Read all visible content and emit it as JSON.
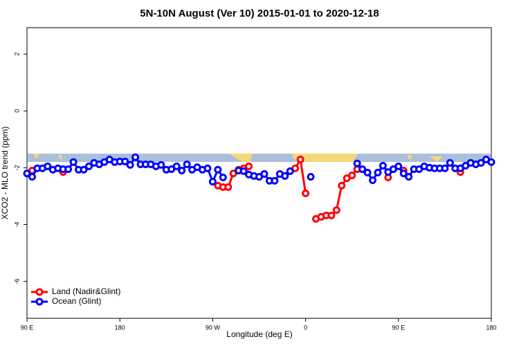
{
  "chart_data": {
    "type": "line",
    "title": "5N-10N August (Ver 10)   2015-01-01 to 2020-12-18",
    "x_label": "Longitude (deg E)",
    "y_label": "XCO2 - MLO trend (ppm)",
    "xlim": [
      90,
      540
    ],
    "xticks": [
      {
        "value": 90,
        "label": "90 E"
      },
      180,
      {
        "value": 270,
        "label": "90 W"
      },
      {
        "value": 360,
        "label": "0"
      },
      {
        "value": 450,
        "label": "90 E"
      },
      {
        "value": 540,
        "label": "180"
      }
    ],
    "ylim": [
      -7.3,
      2.93
    ],
    "yticks": [
      2,
      0,
      -2,
      -4,
      -6
    ],
    "legend": "bottom-left",
    "x": [
      90,
      95,
      100,
      105,
      110,
      115,
      120,
      125,
      130,
      135,
      140,
      145,
      150,
      155,
      160,
      165,
      170,
      175,
      180,
      185,
      190,
      195,
      200,
      205,
      210,
      215,
      220,
      225,
      230,
      235,
      240,
      245,
      250,
      255,
      260,
      265,
      270,
      275,
      280,
      285,
      290,
      295,
      300,
      305,
      310,
      315,
      320,
      325,
      330,
      335,
      340,
      345,
      350,
      355,
      360,
      365,
      370,
      375,
      380,
      385,
      390,
      395,
      400,
      405,
      410,
      415,
      420,
      425,
      430,
      435,
      440,
      445,
      450,
      455,
      460,
      465,
      470,
      475,
      480,
      485,
      490,
      495,
      500,
      505,
      510,
      515,
      520,
      525,
      530,
      535,
      540
    ],
    "series": [
      {
        "name": "Land (Nadir&Glint)",
        "color": "#ff0000",
        "values": [
          null,
          -2.1,
          null,
          null,
          null,
          null,
          null,
          -2.15,
          null,
          null,
          null,
          null,
          null,
          null,
          null,
          null,
          null,
          null,
          null,
          null,
          null,
          null,
          null,
          null,
          null,
          null,
          null,
          null,
          null,
          null,
          null,
          null,
          null,
          null,
          null,
          null,
          null,
          -2.63,
          -2.68,
          -2.68,
          -2.2,
          -2.07,
          -2.02,
          -1.95,
          null,
          null,
          null,
          null,
          null,
          null,
          null,
          null,
          -2.02,
          -1.71,
          -2.9,
          null,
          -3.8,
          -3.73,
          -3.68,
          -3.68,
          -3.49,
          -2.63,
          -2.37,
          -2.27,
          -2.05,
          null,
          null,
          null,
          null,
          null,
          -2.34,
          null,
          null,
          -2.1,
          null,
          null,
          null,
          null,
          -2.0,
          null,
          null,
          null,
          null,
          null,
          -2.15,
          null,
          null,
          null,
          null,
          null,
          null
        ]
      },
      {
        "name": "Ocean (Glint)",
        "color": "#0000ff",
        "values": [
          -2.2,
          -2.32,
          -2.02,
          -2.02,
          -1.95,
          -2.07,
          -2.02,
          -2.05,
          -2.05,
          -1.8,
          -2.07,
          -2.07,
          -1.95,
          -1.83,
          -1.88,
          -1.8,
          -1.71,
          -1.8,
          -1.78,
          -1.78,
          -1.9,
          -1.63,
          -1.88,
          -1.88,
          -1.88,
          -1.95,
          -1.9,
          -2.07,
          -2.05,
          -1.95,
          -2.1,
          -1.88,
          -2.07,
          -1.98,
          -2.07,
          -2.02,
          -2.49,
          -2.07,
          -2.34,
          null,
          null,
          -2.1,
          -2.12,
          -2.24,
          -2.29,
          -2.32,
          -2.22,
          -2.46,
          -2.46,
          -2.22,
          -2.29,
          -2.12,
          null,
          null,
          null,
          -2.32,
          null,
          null,
          null,
          null,
          null,
          null,
          null,
          null,
          -1.85,
          -2.05,
          -2.17,
          -2.44,
          -2.17,
          -1.93,
          -2.15,
          -2.05,
          -1.95,
          -2.2,
          -2.32,
          -2.05,
          -2.05,
          -1.95,
          -2.0,
          -2.02,
          -2.02,
          -2.02,
          -1.83,
          -2.02,
          -2.02,
          -1.93,
          -1.83,
          -1.88,
          -1.83,
          -1.71,
          -1.8
        ]
      }
    ]
  }
}
